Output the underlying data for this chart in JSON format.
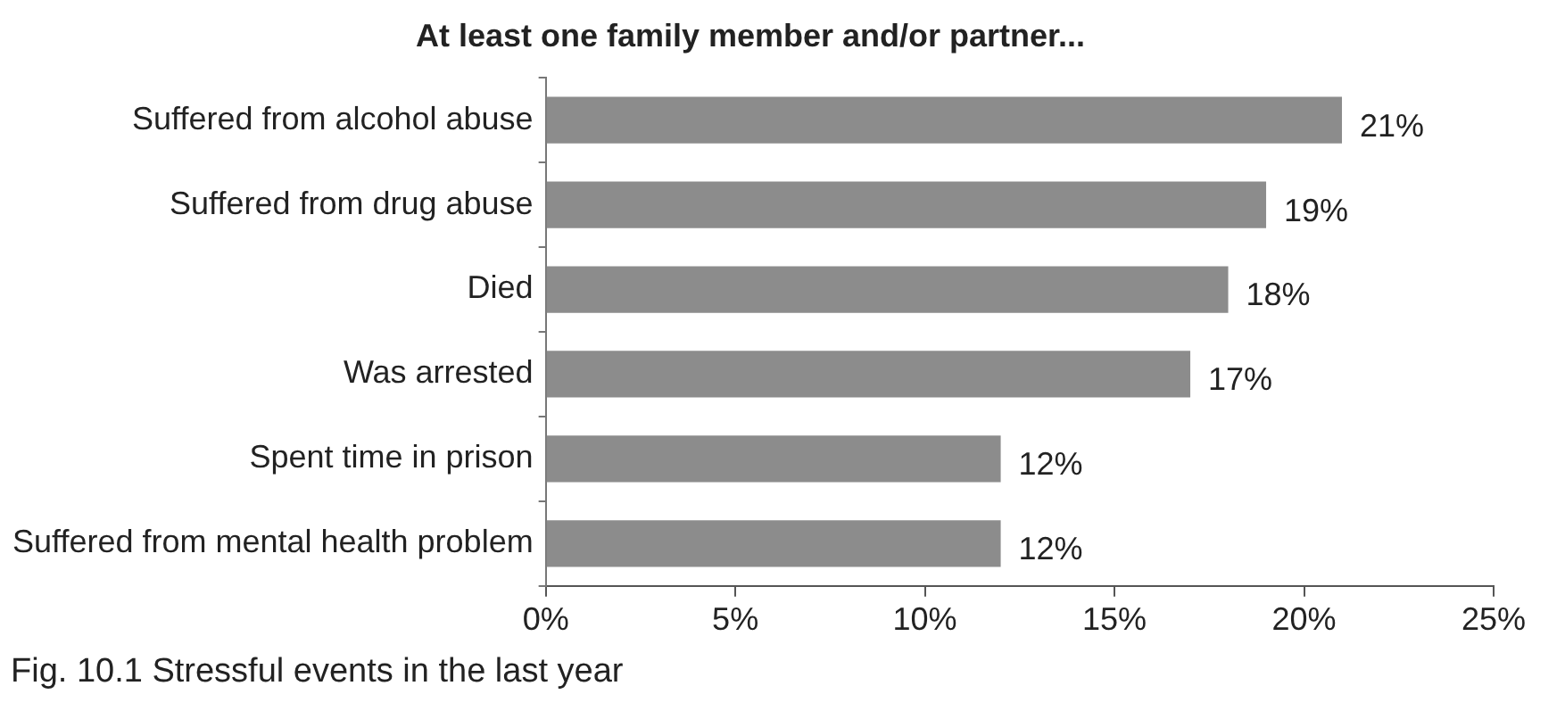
{
  "chart_data": {
    "type": "bar",
    "orientation": "horizontal",
    "title": "At least one family member and/or partner...",
    "categories": [
      "Suffered from alcohol abuse",
      "Suffered from drug abuse",
      "Died",
      "Was arrested",
      "Spent time in prison",
      "Suffered from mental health problem"
    ],
    "values": [
      21,
      19,
      18,
      17,
      12,
      12
    ],
    "color": "#8c8c8c",
    "value_labels": [
      "21%",
      "19%",
      "18%",
      "17%",
      "12%",
      "12%"
    ],
    "xlim": [
      0,
      25
    ],
    "xticks": [
      {
        "value": 0,
        "label": "0%"
      },
      {
        "value": 5,
        "label": "5%"
      },
      {
        "value": 10,
        "label": "10%"
      },
      {
        "value": 15,
        "label": "15%"
      },
      {
        "value": 20,
        "label": "20%"
      },
      {
        "value": 25,
        "label": "25%"
      }
    ],
    "grid": false,
    "legend": false,
    "annotations": [
      "Fig. 10.1  Stressful events in the last year"
    ]
  }
}
